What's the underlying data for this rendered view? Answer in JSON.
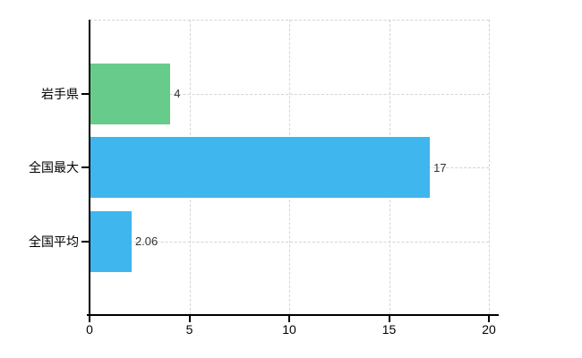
{
  "chart_data": {
    "type": "bar",
    "orientation": "horizontal",
    "title": "",
    "xlabel": "",
    "ylabel": "",
    "categories": [
      "岩手県",
      "全国最大",
      "全国平均"
    ],
    "values": [
      4,
      17,
      2.06
    ],
    "value_labels": [
      "4",
      "17",
      "2.06"
    ],
    "bar_colors": [
      "#67cb8b",
      "#3fb6ee",
      "#3fb6ee"
    ],
    "xlim": [
      0,
      20
    ],
    "x_ticks": [
      0,
      5,
      10,
      15,
      20
    ],
    "x_tick_labels": [
      "0",
      "5",
      "10",
      "15",
      "20"
    ],
    "grid": "on",
    "gridline_style": "dashed",
    "legend": "none"
  },
  "colors": {
    "background": "#ffffff",
    "axis": "#000000",
    "gridline": "#d4d4d4",
    "bar_green": "#67cb8b",
    "bar_blue": "#3fb6ee",
    "value_label": "#333333"
  }
}
